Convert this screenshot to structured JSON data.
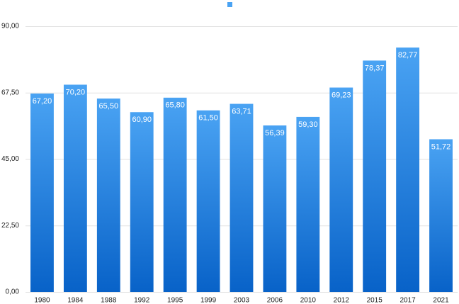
{
  "chart_data": {
    "type": "bar",
    "color": "#4aa3f3",
    "categories": [
      "1980",
      "1984",
      "1988",
      "1992",
      "1995",
      "1999",
      "2003",
      "2006",
      "2010",
      "2012",
      "2015",
      "2017",
      "2021"
    ],
    "values": [
      67.2,
      70.2,
      65.5,
      60.9,
      65.8,
      61.5,
      63.71,
      56.39,
      59.3,
      69.23,
      78.37,
      82.77,
      51.72
    ],
    "value_labels": [
      "67,20",
      "70,20",
      "65,50",
      "60,90",
      "65,80",
      "61,50",
      "63,71",
      "56,39",
      "59,30",
      "69,23",
      "78,37",
      "82,77",
      "51,72"
    ],
    "ylim": [
      0,
      90
    ],
    "yticks": [
      {
        "value": 0,
        "label": "0,00"
      },
      {
        "value": 22.5,
        "label": "22,50"
      },
      {
        "value": 45,
        "label": "45,00"
      },
      {
        "value": 67.5,
        "label": "67,50"
      },
      {
        "value": 90,
        "label": "90,00"
      }
    ],
    "grid": true
  }
}
